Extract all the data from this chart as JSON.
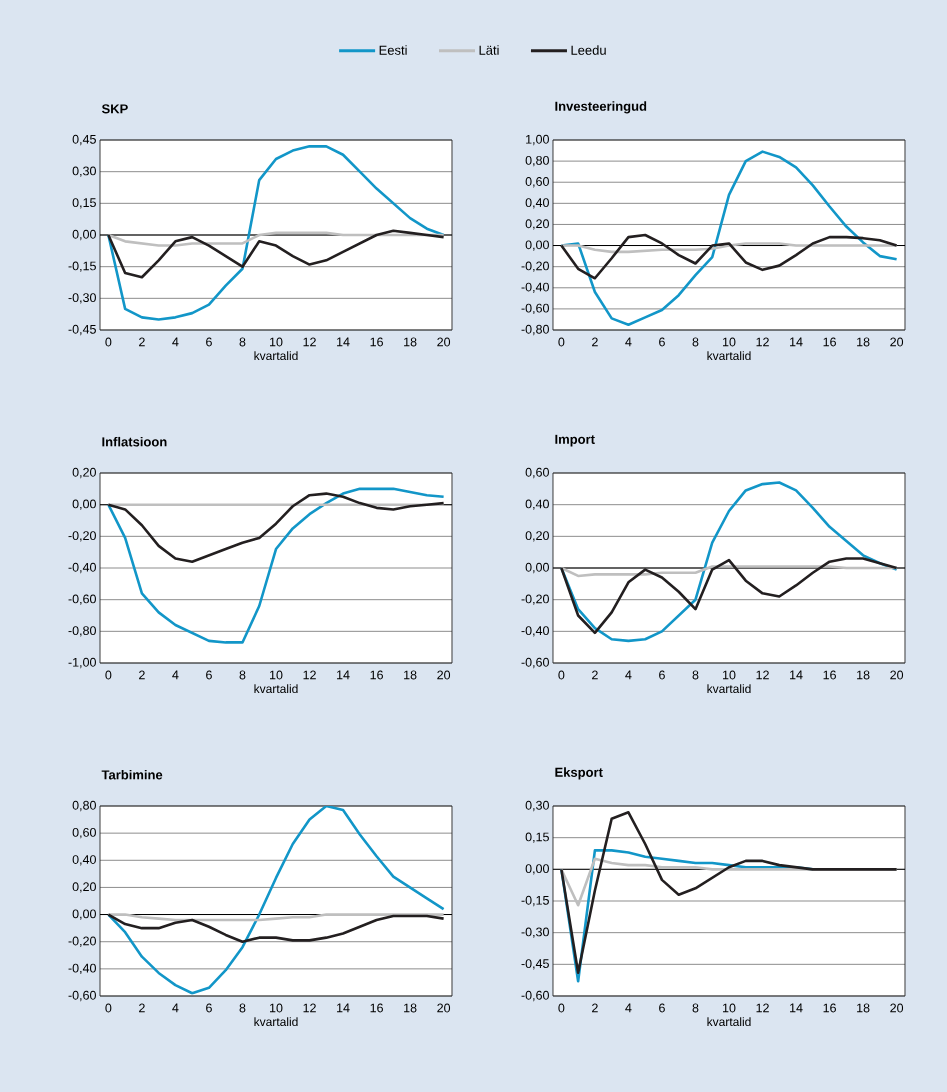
{
  "chart_data": [
    {
      "type": "line",
      "title": "SKP",
      "xlabel": "kvartalid",
      "x": [
        0,
        1,
        2,
        3,
        4,
        5,
        6,
        7,
        8,
        9,
        10,
        11,
        12,
        13,
        14,
        15,
        16,
        17,
        18,
        19,
        20
      ],
      "xlim": [
        -0.5,
        20.5
      ],
      "xticks": [
        0,
        2,
        4,
        6,
        8,
        10,
        12,
        14,
        16,
        18,
        20
      ],
      "ylim": [
        -0.45,
        0.45
      ],
      "yticks": [
        {
          "value": -0.45,
          "label": "-0,45"
        },
        {
          "value": -0.3,
          "label": "-0,30"
        },
        {
          "value": -0.15,
          "label": "-0,15"
        },
        {
          "value": 0,
          "label": "0,00"
        },
        {
          "value": 0.15,
          "label": "0,15"
        },
        {
          "value": 0.3,
          "label": "0,30"
        },
        {
          "value": 0.45,
          "label": "0,45"
        }
      ],
      "grid": "y",
      "legend": "top",
      "marker": "none",
      "line_style": "solid",
      "series": [
        {
          "name": "Eesti",
          "color": "#1296c8",
          "values": [
            0,
            -0.35,
            -0.39,
            -0.4,
            -0.39,
            -0.37,
            -0.33,
            -0.24,
            -0.16,
            0.26,
            0.36,
            0.4,
            0.42,
            0.42,
            0.38,
            0.3,
            0.22,
            0.15,
            0.08,
            0.03,
            0.0
          ]
        },
        {
          "name": "Läti",
          "color": "#bfbfbf",
          "values": [
            0,
            -0.03,
            -0.04,
            -0.05,
            -0.05,
            -0.04,
            -0.04,
            -0.04,
            -0.04,
            0,
            0.01,
            0.01,
            0.01,
            0.01,
            0,
            0,
            0,
            0,
            0,
            0,
            0
          ]
        },
        {
          "name": "Leedu",
          "color": "#231f20",
          "values": [
            0,
            -0.18,
            -0.2,
            -0.12,
            -0.03,
            -0.01,
            -0.05,
            -0.1,
            -0.15,
            -0.03,
            -0.05,
            -0.1,
            -0.14,
            -0.12,
            -0.08,
            -0.04,
            0.0,
            0.02,
            0.01,
            0,
            -0.01
          ]
        }
      ]
    },
    {
      "type": "line",
      "title": "Investeeringud",
      "xlabel": "kvartalid",
      "x": [
        0,
        1,
        2,
        3,
        4,
        5,
        6,
        7,
        8,
        9,
        10,
        11,
        12,
        13,
        14,
        15,
        16,
        17,
        18,
        19,
        20
      ],
      "xlim": [
        -0.5,
        20.5
      ],
      "xticks": [
        0,
        2,
        4,
        6,
        8,
        10,
        12,
        14,
        16,
        18,
        20
      ],
      "ylim": [
        -0.8,
        1.0
      ],
      "yticks": [
        {
          "value": -0.8,
          "label": "-0,80"
        },
        {
          "value": -0.6,
          "label": "-0,60"
        },
        {
          "value": -0.4,
          "label": "-0,40"
        },
        {
          "value": -0.2,
          "label": "-0,20"
        },
        {
          "value": 0,
          "label": "0,00"
        },
        {
          "value": 0.2,
          "label": "0,20"
        },
        {
          "value": 0.4,
          "label": "0,40"
        },
        {
          "value": 0.6,
          "label": "0,60"
        },
        {
          "value": 0.8,
          "label": "0,80"
        },
        {
          "value": 1.0,
          "label": "1,00"
        }
      ],
      "grid": "y",
      "marker": "none",
      "line_style": "solid",
      "series": [
        {
          "color": "#1296c8",
          "values": [
            0,
            0.02,
            -0.44,
            -0.69,
            -0.75,
            -0.68,
            -0.61,
            -0.47,
            -0.28,
            -0.11,
            0.48,
            0.8,
            0.89,
            0.84,
            0.74,
            0.57,
            0.37,
            0.18,
            0.03,
            -0.1,
            -0.13
          ]
        },
        {
          "color": "#bfbfbf",
          "values": [
            0,
            0,
            -0.04,
            -0.06,
            -0.06,
            -0.05,
            -0.04,
            -0.04,
            -0.04,
            -0.03,
            0,
            0.02,
            0.02,
            0.02,
            0,
            0,
            0,
            0,
            0,
            0,
            0
          ]
        },
        {
          "color": "#231f20",
          "values": [
            0,
            -0.22,
            -0.31,
            -0.12,
            0.08,
            0.1,
            0.02,
            -0.09,
            -0.17,
            0.0,
            0.02,
            -0.16,
            -0.23,
            -0.19,
            -0.09,
            0.02,
            0.08,
            0.08,
            0.07,
            0.05,
            0.0
          ]
        }
      ]
    },
    {
      "type": "line",
      "title": "Inflatsioon",
      "xlabel": "kvartalid",
      "x": [
        0,
        1,
        2,
        3,
        4,
        5,
        6,
        7,
        8,
        9,
        10,
        11,
        12,
        13,
        14,
        15,
        16,
        17,
        18,
        19,
        20
      ],
      "xlim": [
        -0.5,
        20.5
      ],
      "xticks": [
        0,
        2,
        4,
        6,
        8,
        10,
        12,
        14,
        16,
        18,
        20
      ],
      "ylim": [
        -1.0,
        0.2
      ],
      "yticks": [
        {
          "value": -1.0,
          "label": "-1,00"
        },
        {
          "value": -0.8,
          "label": "-0,80"
        },
        {
          "value": -0.6,
          "label": "-0,60"
        },
        {
          "value": -0.4,
          "label": "-0,40"
        },
        {
          "value": -0.2,
          "label": "-0,20"
        },
        {
          "value": 0,
          "label": "0,00"
        },
        {
          "value": 0.2,
          "label": "0,20"
        }
      ],
      "grid": "y",
      "marker": "none",
      "line_style": "solid",
      "series": [
        {
          "color": "#1296c8",
          "values": [
            0,
            -0.21,
            -0.56,
            -0.68,
            -0.76,
            -0.81,
            -0.86,
            -0.87,
            -0.87,
            -0.64,
            -0.28,
            -0.15,
            -0.06,
            0.01,
            0.07,
            0.1,
            0.1,
            0.1,
            0.08,
            0.06,
            0.05
          ]
        },
        {
          "color": "#bfbfbf",
          "values": [
            0,
            0,
            0,
            0,
            0,
            0,
            0,
            0,
            0,
            0,
            0,
            0,
            0,
            0,
            0,
            0,
            0,
            0,
            0,
            0,
            0
          ]
        },
        {
          "color": "#231f20",
          "values": [
            0,
            -0.03,
            -0.13,
            -0.26,
            -0.34,
            -0.36,
            -0.32,
            -0.28,
            -0.24,
            -0.21,
            -0.12,
            -0.01,
            0.06,
            0.07,
            0.05,
            0.01,
            -0.02,
            -0.03,
            -0.01,
            0.0,
            0.01
          ]
        }
      ]
    },
    {
      "type": "line",
      "title": "Import",
      "xlabel": "kvartalid",
      "x": [
        0,
        1,
        2,
        3,
        4,
        5,
        6,
        7,
        8,
        9,
        10,
        11,
        12,
        13,
        14,
        15,
        16,
        17,
        18,
        19,
        20
      ],
      "xlim": [
        -0.5,
        20.5
      ],
      "xticks": [
        0,
        2,
        4,
        6,
        8,
        10,
        12,
        14,
        16,
        18,
        20
      ],
      "ylim": [
        -0.6,
        0.6
      ],
      "yticks": [
        {
          "value": -0.6,
          "label": "-0,60"
        },
        {
          "value": -0.4,
          "label": "-0,40"
        },
        {
          "value": -0.2,
          "label": "-0,20"
        },
        {
          "value": 0,
          "label": "0,00"
        },
        {
          "value": 0.2,
          "label": "0,20"
        },
        {
          "value": 0.4,
          "label": "0,40"
        },
        {
          "value": 0.6,
          "label": "0,60"
        }
      ],
      "grid": "y",
      "marker": "none",
      "line_style": "solid",
      "series": [
        {
          "color": "#1296c8",
          "values": [
            0,
            -0.26,
            -0.38,
            -0.45,
            -0.46,
            -0.45,
            -0.4,
            -0.3,
            -0.2,
            0.16,
            0.36,
            0.49,
            0.53,
            0.54,
            0.49,
            0.38,
            0.26,
            0.17,
            0.08,
            0.03,
            -0.01
          ]
        },
        {
          "color": "#bfbfbf",
          "values": [
            0,
            -0.05,
            -0.04,
            -0.04,
            -0.04,
            -0.04,
            -0.03,
            -0.03,
            -0.03,
            0.01,
            0.01,
            0.01,
            0.01,
            0.01,
            0.01,
            0.01,
            0.01,
            0,
            0,
            0,
            0
          ]
        },
        {
          "color": "#231f20",
          "values": [
            0,
            -0.3,
            -0.41,
            -0.28,
            -0.09,
            -0.01,
            -0.06,
            -0.15,
            -0.26,
            -0.01,
            0.05,
            -0.08,
            -0.16,
            -0.18,
            -0.11,
            -0.03,
            0.04,
            0.06,
            0.06,
            0.03,
            0.0
          ]
        }
      ]
    },
    {
      "type": "line",
      "title": "Tarbimine",
      "xlabel": "kvartalid",
      "x": [
        0,
        1,
        2,
        3,
        4,
        5,
        6,
        7,
        8,
        9,
        10,
        11,
        12,
        13,
        14,
        15,
        16,
        17,
        18,
        19,
        20
      ],
      "xlim": [
        -0.5,
        20.5
      ],
      "xticks": [
        0,
        2,
        4,
        6,
        8,
        10,
        12,
        14,
        16,
        18,
        20
      ],
      "ylim": [
        -0.6,
        0.8
      ],
      "yticks": [
        {
          "value": -0.6,
          "label": "-0,60"
        },
        {
          "value": -0.4,
          "label": "-0,40"
        },
        {
          "value": -0.2,
          "label": "-0,20"
        },
        {
          "value": 0,
          "label": "0,00"
        },
        {
          "value": 0.2,
          "label": "0,20"
        },
        {
          "value": 0.4,
          "label": "0,40"
        },
        {
          "value": 0.6,
          "label": "0,60"
        },
        {
          "value": 0.8,
          "label": "0,80"
        }
      ],
      "grid": "y",
      "marker": "none",
      "line_style": "solid",
      "series": [
        {
          "color": "#1296c8",
          "values": [
            0,
            -0.13,
            -0.31,
            -0.43,
            -0.52,
            -0.58,
            -0.54,
            -0.41,
            -0.24,
            0.0,
            0.27,
            0.52,
            0.7,
            0.8,
            0.77,
            0.59,
            0.43,
            0.28,
            0.2,
            0.12,
            0.04
          ]
        },
        {
          "color": "#bfbfbf",
          "values": [
            0,
            0,
            -0.02,
            -0.03,
            -0.04,
            -0.04,
            -0.04,
            -0.04,
            -0.04,
            -0.04,
            -0.03,
            -0.02,
            -0.02,
            0,
            0,
            0,
            0,
            0,
            0,
            0,
            0
          ]
        },
        {
          "color": "#231f20",
          "values": [
            0,
            -0.07,
            -0.1,
            -0.1,
            -0.06,
            -0.04,
            -0.09,
            -0.15,
            -0.2,
            -0.17,
            -0.17,
            -0.19,
            -0.19,
            -0.17,
            -0.14,
            -0.09,
            -0.04,
            -0.01,
            -0.01,
            -0.01,
            -0.03
          ]
        }
      ]
    },
    {
      "type": "line",
      "title": "Eksport",
      "xlabel": "kvartalid",
      "x": [
        0,
        1,
        2,
        3,
        4,
        5,
        6,
        7,
        8,
        9,
        10,
        11,
        12,
        13,
        14,
        15,
        16,
        17,
        18,
        19,
        20
      ],
      "xlim": [
        -0.5,
        20.5
      ],
      "xticks": [
        0,
        2,
        4,
        6,
        8,
        10,
        12,
        14,
        16,
        18,
        20
      ],
      "ylim": [
        -0.6,
        0.3
      ],
      "yticks": [
        {
          "value": -0.6,
          "label": "-0,60"
        },
        {
          "value": -0.45,
          "label": "-0,45"
        },
        {
          "value": -0.3,
          "label": "-0,30"
        },
        {
          "value": -0.15,
          "label": "-0,15"
        },
        {
          "value": 0,
          "label": "0,00"
        },
        {
          "value": 0.15,
          "label": "0,15"
        },
        {
          "value": 0.3,
          "label": "0,30"
        }
      ],
      "grid": "y",
      "marker": "none",
      "line_style": "solid",
      "series": [
        {
          "color": "#1296c8",
          "values": [
            0,
            -0.53,
            0.09,
            0.09,
            0.08,
            0.06,
            0.05,
            0.04,
            0.03,
            0.03,
            0.02,
            0.01,
            0.01,
            0.01,
            0.01,
            0,
            null,
            null,
            null,
            null,
            null
          ]
        },
        {
          "color": "#bfbfbf",
          "values": [
            0,
            -0.17,
            0.05,
            0.03,
            0.02,
            0.02,
            0.01,
            0.01,
            0.01,
            0,
            0,
            0,
            0,
            0,
            0,
            0,
            0,
            0,
            0,
            0,
            0
          ]
        },
        {
          "color": "#231f20",
          "values": [
            0,
            -0.49,
            -0.1,
            0.24,
            0.27,
            0.12,
            -0.05,
            -0.12,
            -0.09,
            -0.04,
            0.01,
            0.04,
            0.04,
            0.02,
            0.01,
            0,
            0,
            0,
            0,
            0,
            0
          ]
        }
      ]
    }
  ]
}
